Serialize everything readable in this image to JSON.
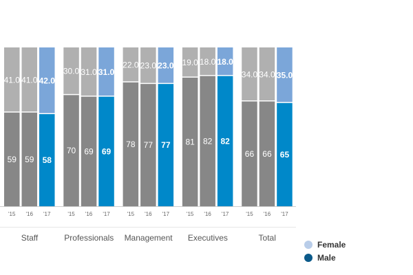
{
  "chart_data": {
    "type": "bar",
    "stacked": true,
    "percent": true,
    "categories": [
      "Staff",
      "Professionals",
      "Management",
      "Executives",
      "Total"
    ],
    "years": [
      "'15",
      "'16",
      "'17"
    ],
    "series": [
      {
        "name": "Male",
        "values": [
          [
            59,
            59,
            58
          ],
          [
            70,
            69,
            69
          ],
          [
            78,
            77,
            77
          ],
          [
            81,
            82,
            82
          ],
          [
            66,
            66,
            65
          ]
        ],
        "labels": [
          [
            "59",
            "59",
            "58"
          ],
          [
            "70",
            "69",
            "69"
          ],
          [
            "78",
            "77",
            "77"
          ],
          [
            "81",
            "82",
            "82"
          ],
          [
            "66",
            "66",
            "65"
          ]
        ]
      },
      {
        "name": "Female",
        "values": [
          [
            41,
            41,
            42
          ],
          [
            30,
            31,
            31
          ],
          [
            22,
            23,
            23
          ],
          [
            19,
            18,
            18
          ],
          [
            34,
            34,
            35
          ]
        ],
        "labels": [
          [
            "41.0",
            "41.0",
            "42.0"
          ],
          [
            "30.0",
            "31.0",
            "31.0"
          ],
          [
            "22.0",
            "23.0",
            "23.0"
          ],
          [
            "19.0",
            "18.0",
            "18.0"
          ],
          [
            "34.0",
            "34.0",
            "35.0"
          ]
        ]
      }
    ],
    "ylim": [
      0,
      100
    ],
    "grid": false,
    "legend_placement": "bottom-right",
    "colors": {
      "male_past": "#878787",
      "female_past": "#b0b0b0",
      "male_current": "#0088c9",
      "female_current": "#7ba6d9",
      "legend_female": "#b9cde9",
      "legend_male": "#0b5a8a"
    }
  },
  "legend": [
    {
      "label": "Female",
      "color": "#b9cde9"
    },
    {
      "label": "Male",
      "color": "#0b5a8a"
    }
  ]
}
